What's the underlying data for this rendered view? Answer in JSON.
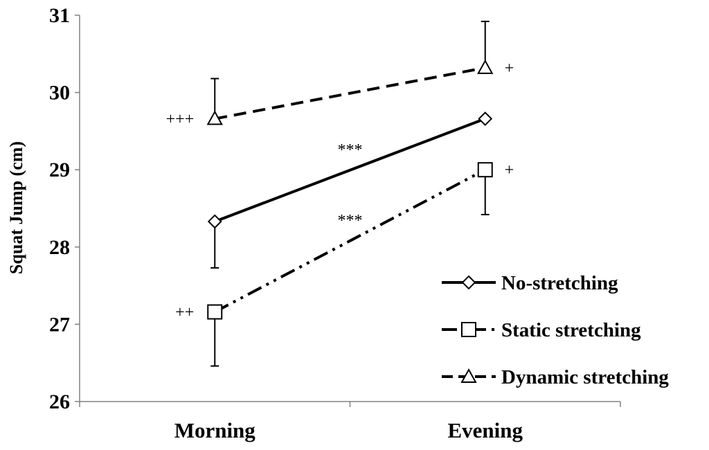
{
  "chart_data": {
    "type": "line",
    "ylabel": "Squat Jump (cm)",
    "xlabel": "",
    "ylim": [
      26,
      31
    ],
    "yticks": [
      "26",
      "27",
      "28",
      "29",
      "30",
      "31"
    ],
    "categories": [
      "Morning",
      "Evening"
    ],
    "grid": false,
    "legend_position": "bottom-right",
    "series": [
      {
        "name": "No-stretching",
        "marker": "diamond",
        "line_style": "solid",
        "values": [
          28.33,
          29.66
        ],
        "errors": [
          0.6,
          null
        ]
      },
      {
        "name": "Static stretching",
        "marker": "square",
        "line_style": "dash-dot-dot",
        "values": [
          27.16,
          29.0
        ],
        "errors": [
          0.7,
          0.58
        ]
      },
      {
        "name": "Dynamic stretching",
        "marker": "triangle",
        "line_style": "dashed",
        "values": [
          29.66,
          30.32
        ],
        "errors": [
          0.52,
          0.6
        ]
      }
    ],
    "annotations": [
      {
        "text": "+++",
        "category": "Morning",
        "series": "Dynamic stretching"
      },
      {
        "text": "++",
        "category": "Morning",
        "series": "Static stretching"
      },
      {
        "text": "+",
        "category": "Evening",
        "series": "Dynamic stretching"
      },
      {
        "text": "+",
        "category": "Evening",
        "series": "Static stretching"
      },
      {
        "text": "***",
        "between": "No-stretching"
      },
      {
        "text": "***",
        "between": "Static stretching"
      }
    ]
  }
}
